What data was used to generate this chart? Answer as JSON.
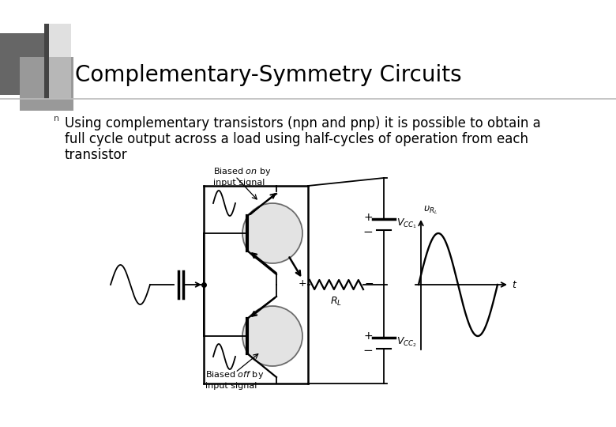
{
  "title": "Complementary-Symmetry Circuits",
  "bullet_lines": [
    "Using complementary transistors (npn and pnp) it is possible to obtain a",
    "full cycle output across a load using half-cycles of operation from each",
    "transistor"
  ],
  "bg_color": "#ffffff",
  "title_color": "#000000",
  "title_fontsize": 20,
  "bullet_fontsize": 12,
  "deco_dark_color": "#666666",
  "deco_light_color": "#aaaaaa",
  "title_line_color": "#bbbbbb",
  "circuit_color": "#000000"
}
